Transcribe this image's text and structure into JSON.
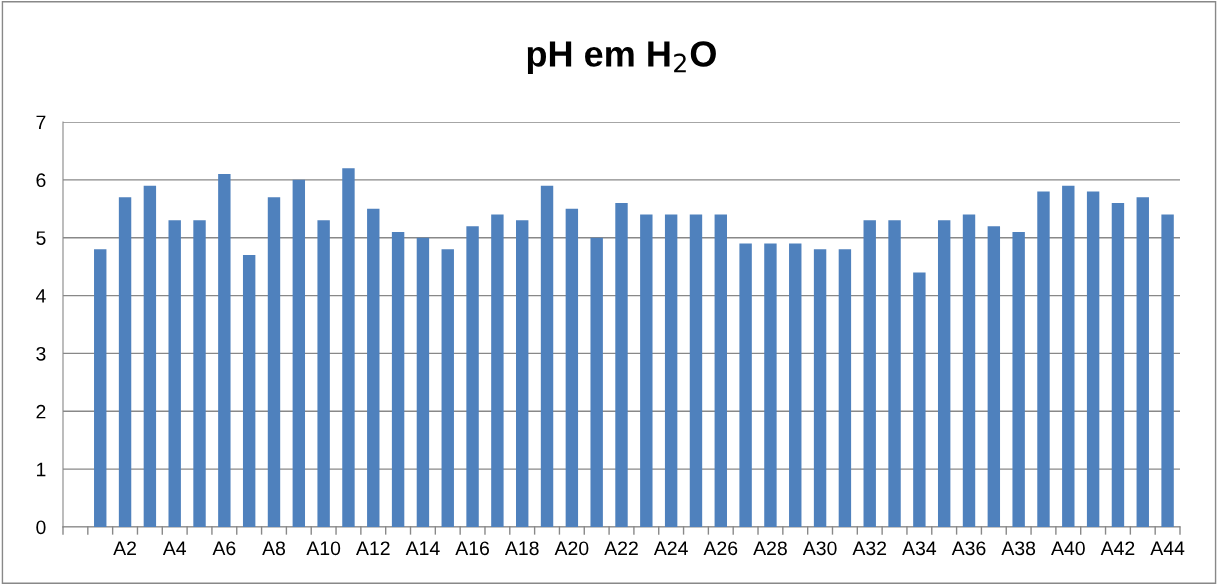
{
  "chart_data": {
    "type": "bar",
    "title": "pH em H$_{2}$O",
    "categories": [
      null,
      null,
      "A2",
      null,
      "A4",
      null,
      "A6",
      null,
      "A8",
      null,
      "A10",
      null,
      "A12",
      null,
      "A14",
      null,
      "A16",
      null,
      "A18",
      null,
      "A20",
      null,
      "A22",
      null,
      "A24",
      null,
      "A26",
      null,
      "A28",
      null,
      "A30",
      null,
      "A32",
      null,
      "A34",
      null,
      "A36",
      null,
      "A38",
      null,
      "A40",
      null,
      "A42",
      null,
      "A44"
    ],
    "values": [
      null,
      4.8,
      5.7,
      5.9,
      5.3,
      5.3,
      6.1,
      4.7,
      5.7,
      6.0,
      5.3,
      6.2,
      5.5,
      5.1,
      5.0,
      4.8,
      5.2,
      5.4,
      5.3,
      5.9,
      5.5,
      5.0,
      5.6,
      5.4,
      5.4,
      5.4,
      5.4,
      4.9,
      4.9,
      4.9,
      4.8,
      4.8,
      5.3,
      5.3,
      4.4,
      5.3,
      5.4,
      5.2,
      5.1,
      5.8,
      5.9,
      5.8,
      5.6,
      5.7,
      5.4
    ],
    "color": "#4f81bd",
    "ylim": [
      0,
      7
    ],
    "yticks": [
      0,
      1,
      2,
      3,
      4,
      5,
      6,
      7
    ],
    "grid": "y",
    "legend": false
  }
}
